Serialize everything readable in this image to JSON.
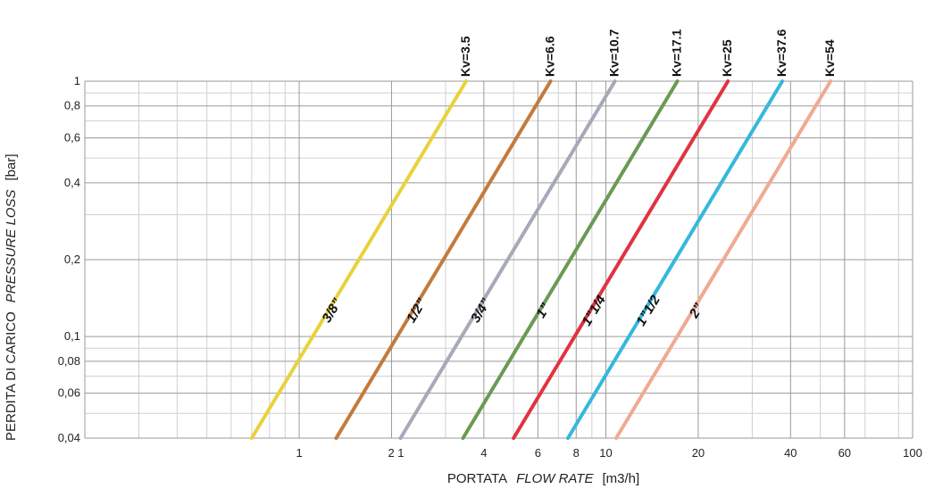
{
  "chart_data": {
    "type": "line",
    "title": "",
    "x_axis": {
      "label_main": "PORTATA",
      "label_italic": "FLOW RATE",
      "unit": "[m3/h]",
      "scale": "log",
      "range": [
        0.2,
        100
      ],
      "tick_labels": [
        "1",
        "2 1",
        "4",
        "6",
        "8",
        "10",
        "20",
        "40",
        "60",
        "100"
      ],
      "grid": true
    },
    "y_axis": {
      "label_main": "PERDITA DI CARICO",
      "label_italic": "PRESSURE LOSS",
      "unit": "[bar]",
      "scale": "log",
      "range": [
        0.04,
        1
      ],
      "tick_labels": [
        "1",
        "0,8",
        "0,6",
        "0,4",
        "0,2",
        "0,1",
        "0,08",
        "0,06",
        "0,04"
      ],
      "grid": true
    },
    "series": [
      {
        "name": "3/8”",
        "kv_label": "Kv=3.5",
        "kv": 3.5,
        "color": "#e8d23c",
        "points": [
          [
            0.7,
            0.04
          ],
          [
            3.5,
            1
          ]
        ]
      },
      {
        "name": "1/2”",
        "kv_label": "Kv=6.6",
        "kv": 6.6,
        "color": "#c47a3c",
        "points": [
          [
            1.32,
            0.04
          ],
          [
            6.6,
            1
          ]
        ]
      },
      {
        "name": "3/4”",
        "kv_label": "Kv=10.7",
        "kv": 10.7,
        "color": "#a6a9b7",
        "points": [
          [
            2.14,
            0.04
          ],
          [
            10.7,
            1
          ]
        ]
      },
      {
        "name": "1”",
        "kv_label": "Kv=17.1",
        "kv": 17.1,
        "color": "#6a9a54",
        "points": [
          [
            3.42,
            0.04
          ],
          [
            17.1,
            1
          ]
        ]
      },
      {
        "name": "1”1/4",
        "kv_label": "Kv=25",
        "kv": 25,
        "color": "#e03341",
        "points": [
          [
            5.0,
            0.04
          ],
          [
            25,
            1
          ]
        ]
      },
      {
        "name": "1”1/2",
        "kv_label": "Kv=37.6",
        "kv": 37.6,
        "color": "#35b8dc",
        "points": [
          [
            7.52,
            0.04
          ],
          [
            37.6,
            1
          ]
        ]
      },
      {
        "name": "2”",
        "kv_label": "Kv=54",
        "kv": 54,
        "color": "#f0a992",
        "points": [
          [
            10.8,
            0.04
          ],
          [
            54,
            1
          ]
        ]
      }
    ]
  }
}
